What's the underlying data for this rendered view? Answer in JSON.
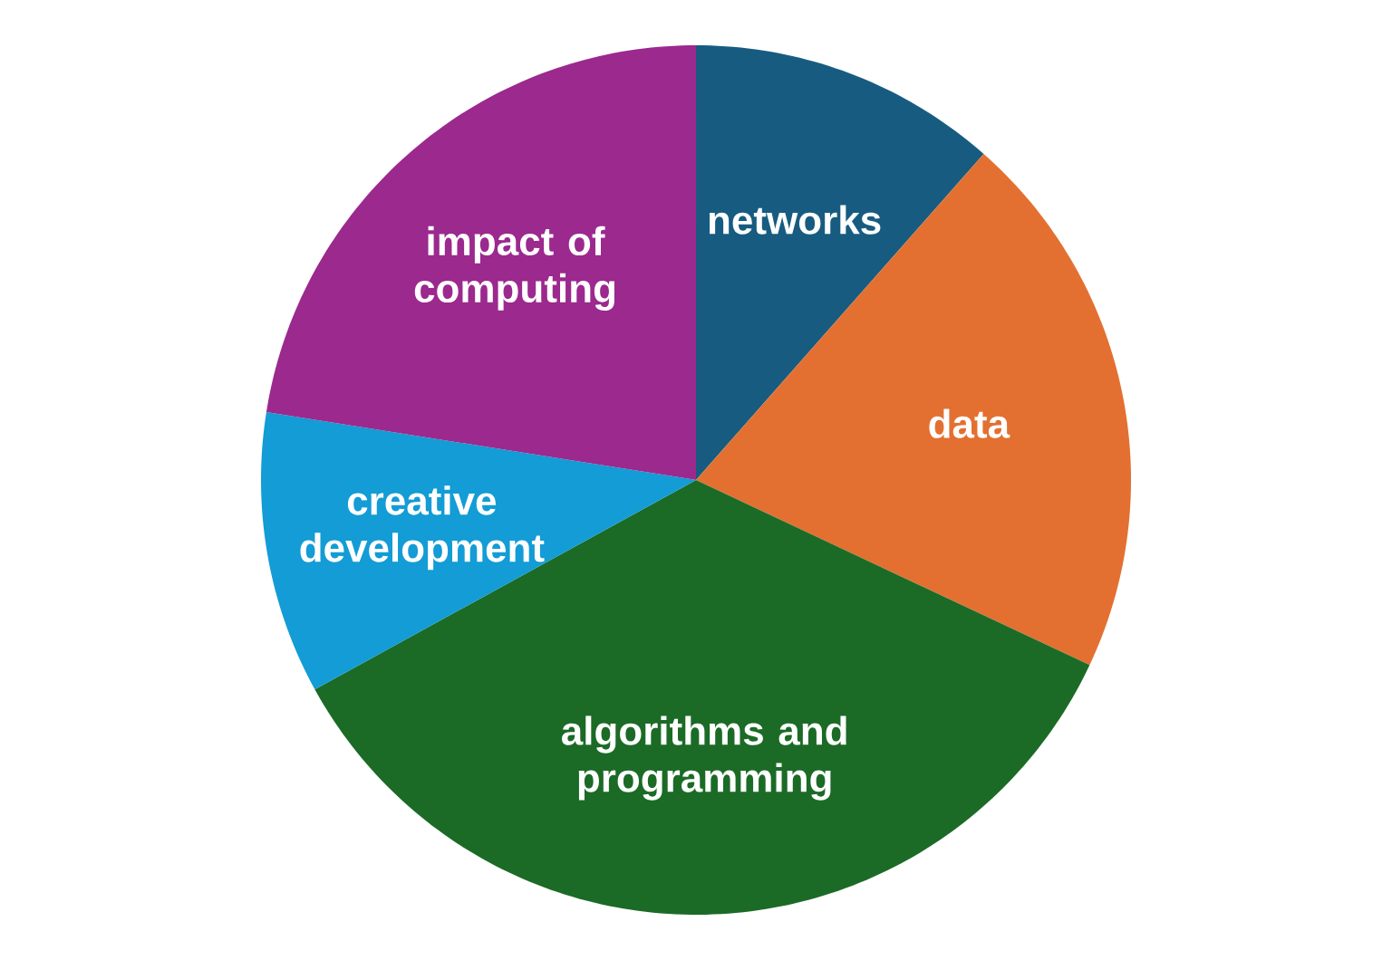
{
  "chart_data": {
    "type": "pie",
    "categories": [
      "networks",
      "data",
      "algorithms and programming",
      "creative development",
      "impact of computing"
    ],
    "values": [
      11.5,
      20.5,
      35,
      10.5,
      22.5
    ],
    "colors": [
      "#175c80",
      "#e37031",
      "#1b6b26",
      "#139cd5",
      "#9b298e"
    ]
  }
}
